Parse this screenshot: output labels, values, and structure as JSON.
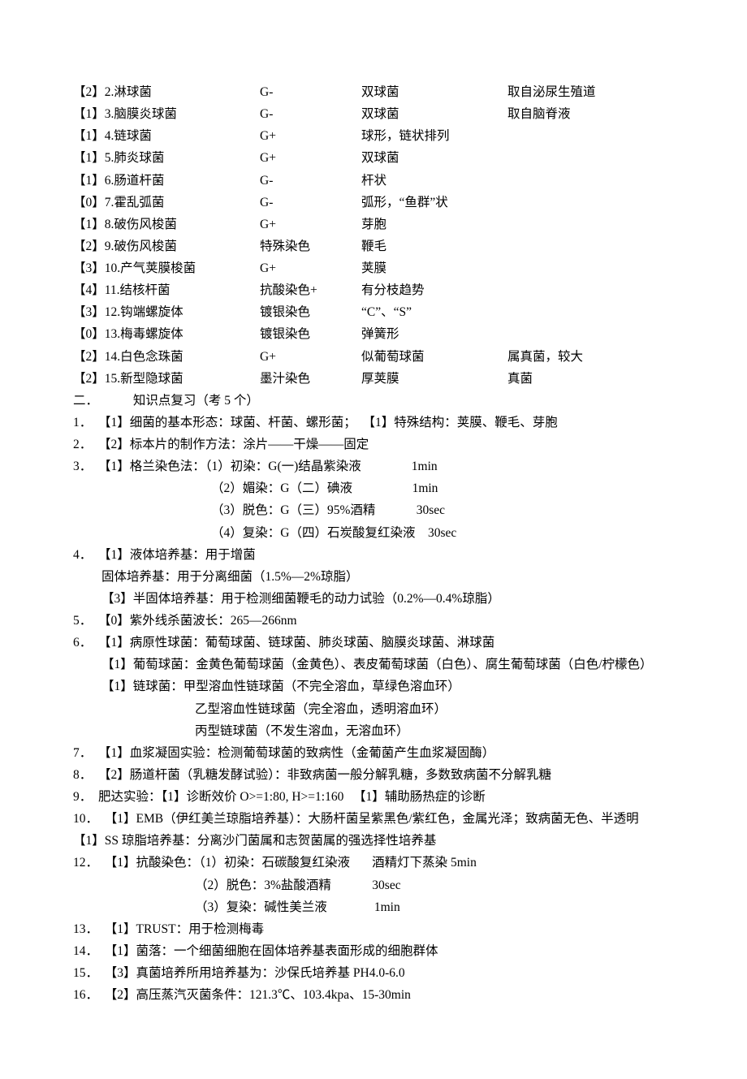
{
  "table_rows": [
    {
      "c0": "【2】2.淋球菌",
      "c1": "G-",
      "c2": "双球菌",
      "c3": "取自泌尿生殖道"
    },
    {
      "c0": "【1】3.脑膜炎球菌",
      "c1": "G-",
      "c2": "双球菌",
      "c3": "取自脑脊液"
    },
    {
      "c0": "【1】4.链球菌",
      "c1": "G+",
      "c2": "球形，链状排列",
      "c3": ""
    },
    {
      "c0": "【1】5.肺炎球菌",
      "c1": "G+",
      "c2": "双球菌",
      "c3": ""
    },
    {
      "c0": "【1】6.肠道杆菌",
      "c1": "G-",
      "c2": "杆状",
      "c3": ""
    },
    {
      "c0": "【0】7.霍乱弧菌",
      "c1": "G-",
      "c2": "弧形，“鱼群”状",
      "c3": ""
    },
    {
      "c0": "【1】8.破伤风梭菌",
      "c1": "G+",
      "c2": "芽胞",
      "c3": ""
    },
    {
      "c0": "【2】9.破伤风梭菌",
      "c1": "特殊染色",
      "c2": "鞭毛",
      "c3": ""
    },
    {
      "c0": "【3】10.产气荚膜梭菌",
      "c1": "G+",
      "c2": "荚膜",
      "c3": ""
    },
    {
      "c0": "【4】11.结核杆菌",
      "c1": "抗酸染色+",
      "c2": "有分枝趋势",
      "c3": ""
    },
    {
      "c0": "【3】12.钩端螺旋体",
      "c1": "镀银染色",
      "c2": "“C”、“S”",
      "c3": ""
    },
    {
      "c0": "【0】13.梅毒螺旋体",
      "c1": "镀银染色",
      "c2": "弹簧形",
      "c3": ""
    },
    {
      "c0": "【2】14.白色念珠菌",
      "c1": "G+",
      "c2": "似葡萄球菌",
      "c3": "属真菌，较大"
    },
    {
      "c0": "【2】15.新型隐球菌",
      "c1": "墨汁染色",
      "c2": "厚荚膜",
      "c3": "真菌"
    }
  ],
  "section2": {
    "num": "二．",
    "title": "知识点复习（考 5 个）"
  },
  "lines": [
    {
      "t": "1．  【1】细菌的基本形态：球菌、杆菌、螺形菌；  【1】特殊结构：荚膜、鞭毛、芽胞",
      "cls": ""
    },
    {
      "t": "2．  【2】标本片的制作方法：涂片——干燥——固定",
      "cls": ""
    },
    {
      "t": "3．  【1】格兰染色法：（1）初染：G(一)结晶紫染液                1min",
      "cls": ""
    },
    {
      "t": "（2）媚染：G（二）碘液                   1min",
      "cls": "indent2"
    },
    {
      "t": "（3）脱色：G（三）95%酒精             30sec",
      "cls": "indent2"
    },
    {
      "t": "（4）复染：G（四）石炭酸复红染液    30sec",
      "cls": "indent2"
    },
    {
      "t": "4．  【1】液体培养基：用于增菌",
      "cls": ""
    },
    {
      "t": "固体培养基：用于分离细菌（1.5%—2%琼脂）",
      "cls": "indent1"
    },
    {
      "t": "【3】半固体培养基：用于检测细菌鞭毛的动力试验（0.2%—0.4%琼脂）",
      "cls": "indent1"
    },
    {
      "t": "5．  【0】紫外线杀菌波长：265—266nm",
      "cls": ""
    },
    {
      "t": "6．  【1】病原性球菌：葡萄球菌、链球菌、肺炎球菌、脑膜炎球菌、淋球菌",
      "cls": ""
    },
    {
      "t": "【1】葡萄球菌：金黄色葡萄球菌（金黄色）、表皮葡萄球菌（白色）、腐生葡萄球菌（白色/柠檬色）",
      "cls": "indent1"
    },
    {
      "t": "【1】链球菌：甲型溶血性链球菌（不完全溶血，草绿色溶血环）",
      "cls": "indent1"
    },
    {
      "t": "乙型溶血性链球菌（完全溶血，透明溶血环）",
      "cls": "indent3"
    },
    {
      "t": "丙型链球菌（不发生溶血，无溶血环）",
      "cls": "indent3"
    },
    {
      "t": "7．  【1】血浆凝固实验：检测葡萄球菌的致病性（金葡菌产生血浆凝固酶）",
      "cls": ""
    },
    {
      "t": "8．  【2】肠道杆菌（乳糖发酵试验）：非致病菌一般分解乳糖，多数致病菌不分解乳糖",
      "cls": ""
    },
    {
      "t": "9．  肥达实验：【1】诊断效价 O>=1:80, H>=1:160   【1】辅助肠热症的诊断",
      "cls": ""
    },
    {
      "t": "10．  【1】EMB（伊红美兰琼脂培养基）：大肠杆菌呈紫黑色/紫红色，金属光泽；致病菌无色、半透明",
      "cls": ""
    },
    {
      "t": "【1】SS 琼脂培养基：分离沙门菌属和志贺菌属的强选择性培养基",
      "cls": ""
    },
    {
      "t": "12．  【1】抗酸染色：（1）初染：石碳酸复红染液       酒精灯下蒸染 5min",
      "cls": ""
    },
    {
      "t": "（2）脱色：3%盐酸酒精             30sec",
      "cls": "indent3"
    },
    {
      "t": "（3）复染：碱性美兰液               1min",
      "cls": "indent3"
    },
    {
      "t": "13．  【1】TRUST：用于检测梅毒",
      "cls": ""
    },
    {
      "t": "14．  【1】菌落：一个细菌细胞在固体培养基表面形成的细胞群体",
      "cls": ""
    },
    {
      "t": "15．  【3】真菌培养所用培养基为：沙保氏培养基 PH4.0-6.0",
      "cls": ""
    },
    {
      "t": "16．  【2】高压蒸汽灭菌条件：121.3℃、103.4kpa、15-30min",
      "cls": ""
    }
  ]
}
